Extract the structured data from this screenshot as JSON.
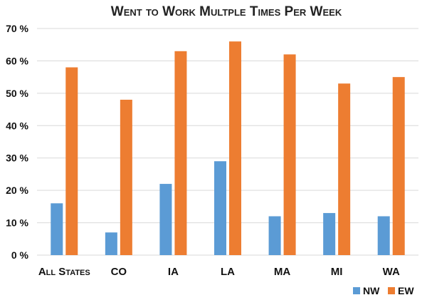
{
  "chart_data": {
    "type": "bar",
    "title": "Went to Work Multple Times Per Week",
    "categories": [
      "All States",
      "CO",
      "IA",
      "LA",
      "MA",
      "MI",
      "WA"
    ],
    "series": [
      {
        "name": "NW",
        "color": "#5b9bd5",
        "values": [
          16,
          7,
          22,
          29,
          12,
          13,
          12
        ]
      },
      {
        "name": "EW",
        "color": "#ed7d31",
        "values": [
          58,
          48,
          63,
          66,
          62,
          53,
          55
        ]
      }
    ],
    "yticks": [
      "0 %",
      "10 %",
      "20 %",
      "30 %",
      "40 %",
      "50 %",
      "60 %",
      "70 %"
    ],
    "ylim": [
      0,
      70
    ],
    "grid": true,
    "legend_position": "bottom-right"
  }
}
